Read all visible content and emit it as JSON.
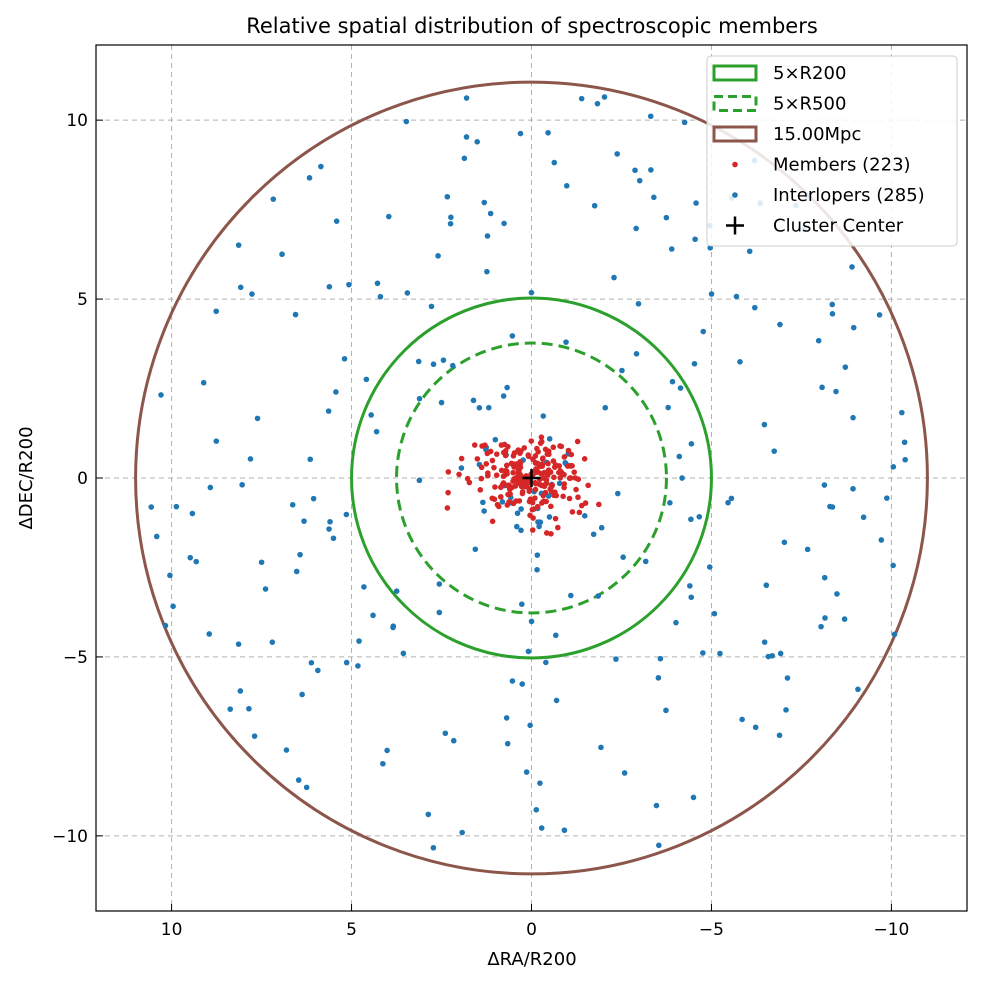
{
  "chart_data": {
    "type": "scatter",
    "title": "Relative spatial distribution of spectroscopic members",
    "xlabel": "ΔRA/R200",
    "ylabel": "ΔDEC/R200",
    "xlim": [
      12.1,
      -12.1
    ],
    "ylim": [
      -12.1,
      12.1
    ],
    "x_ticks": [
      10,
      5,
      0,
      -5,
      -10
    ],
    "y_ticks": [
      -10,
      -5,
      0,
      5,
      10
    ],
    "x_tick_labels": [
      "10",
      "5",
      "0",
      "−5",
      "−10"
    ],
    "y_tick_labels": [
      "−10",
      "−5",
      "0",
      "5",
      "10"
    ],
    "grid": true,
    "legend_position": "top-right",
    "circles": [
      {
        "name": "5×R200",
        "radius": 5.0,
        "style": "solid",
        "color": "#2ca02c"
      },
      {
        "name": "5×R500",
        "radius": 3.75,
        "style": "dashed",
        "color": "#2ca02c"
      },
      {
        "name": "15.00Mpc",
        "radius": 11.0,
        "style": "solid",
        "color": "#8c564b"
      }
    ],
    "series": [
      {
        "name": "Members (223)",
        "color": "#d62728",
        "count": 223,
        "seed": 7,
        "spread_x": 0.75,
        "spread_y": 0.55,
        "max_r": 3.4
      },
      {
        "name": "Interlopers (285)",
        "color": "#1f77b4",
        "count": 285,
        "seed": 31,
        "inner_core": 35,
        "max_r": 11.0
      },
      {
        "name": "Cluster Center",
        "marker": "+",
        "color": "#000000",
        "x": 0,
        "y": 0
      }
    ],
    "legend": [
      {
        "label": "5×R200",
        "kind": "rect-solid",
        "color": "#2ca02c"
      },
      {
        "label": "5×R500",
        "kind": "rect-dashed",
        "color": "#2ca02c"
      },
      {
        "label": "15.00Mpc",
        "kind": "rect-solid",
        "color": "#8c564b"
      },
      {
        "label": "Members (223)",
        "kind": "dot",
        "color": "#d62728"
      },
      {
        "label": "Interlopers (285)",
        "kind": "dot",
        "color": "#1f77b4"
      },
      {
        "label": "Cluster Center",
        "kind": "plus",
        "color": "#000000"
      }
    ]
  }
}
